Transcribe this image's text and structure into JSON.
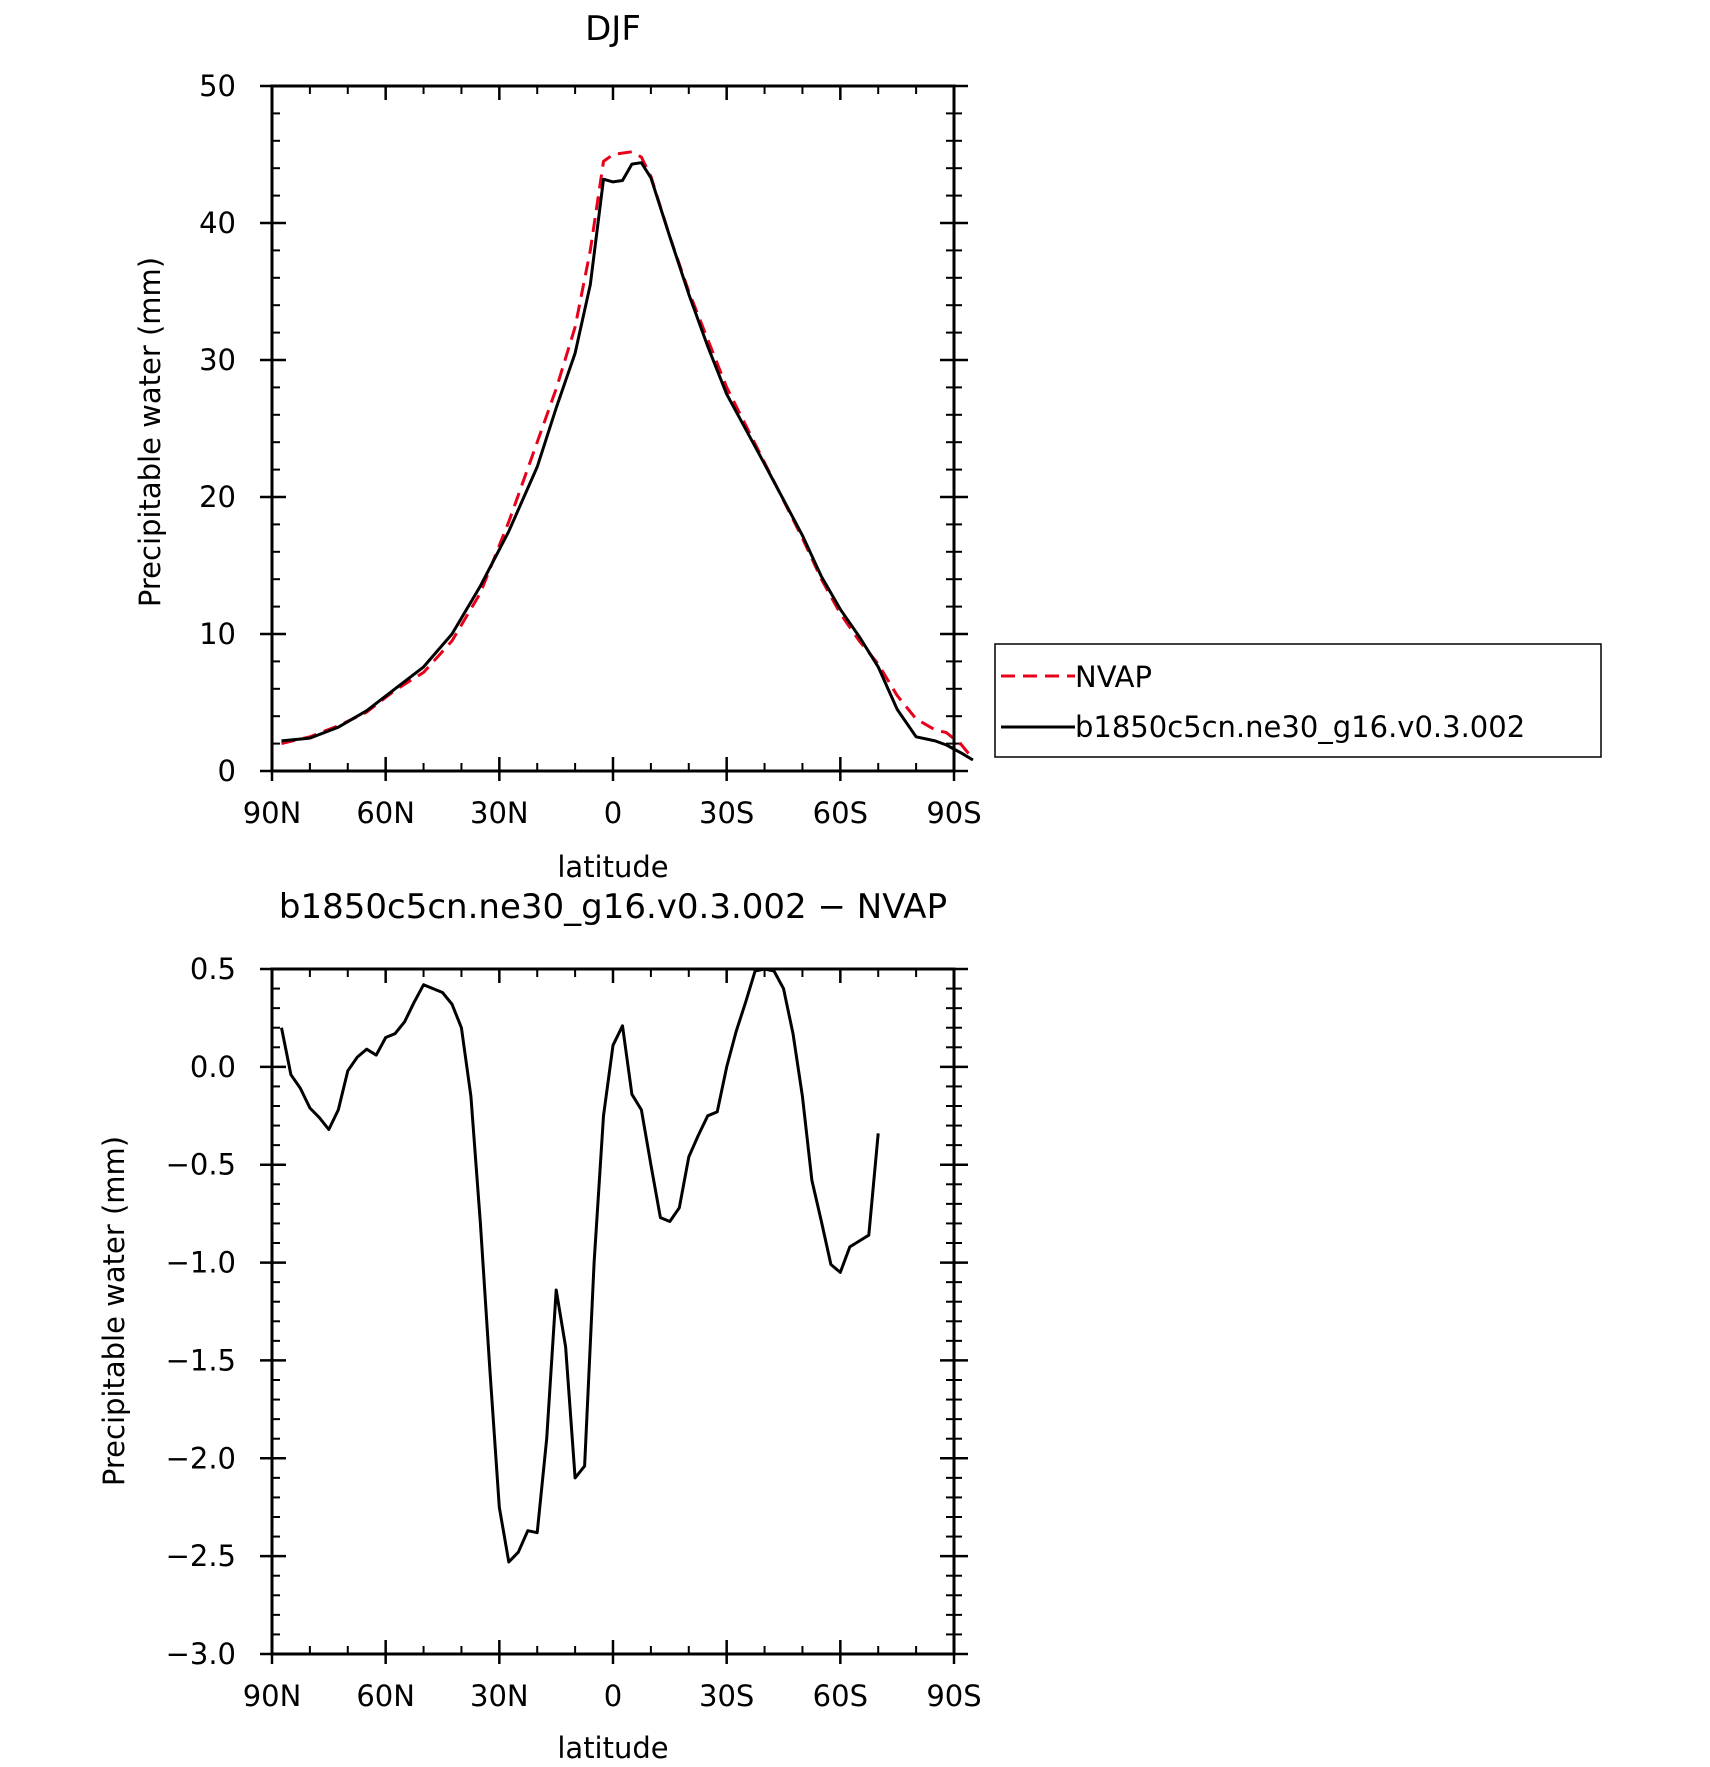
{
  "chart_data": [
    {
      "type": "line",
      "title": "DJF",
      "xlabel": "latitude",
      "ylabel": "Precipitable water (mm)",
      "xlim": [
        90,
        -90
      ],
      "ylim": [
        0,
        50
      ],
      "x_ticks": [
        {
          "value": 90,
          "label": "90N"
        },
        {
          "value": 60,
          "label": "60N"
        },
        {
          "value": 30,
          "label": "30N"
        },
        {
          "value": 0,
          "label": "0"
        },
        {
          "value": -30,
          "label": "30S"
        },
        {
          "value": -60,
          "label": "60S"
        },
        {
          "value": -90,
          "label": "90S"
        }
      ],
      "y_ticks": [
        {
          "value": 0,
          "label": "0"
        },
        {
          "value": 10,
          "label": "10"
        },
        {
          "value": 20,
          "label": "20"
        },
        {
          "value": 30,
          "label": "30"
        },
        {
          "value": 40,
          "label": "40"
        },
        {
          "value": 50,
          "label": "50"
        }
      ],
      "legend_position": "right",
      "series": [
        {
          "name": "NVAP",
          "color": "#e8001b",
          "dash": "dashed",
          "points": [
            [
              87.5,
              2.0
            ],
            [
              80,
              2.5
            ],
            [
              72.5,
              3.3
            ],
            [
              65,
              4.3
            ],
            [
              57.5,
              5.9
            ],
            [
              50,
              7.2
            ],
            [
              42.5,
              9.5
            ],
            [
              35,
              13.0
            ],
            [
              27.5,
              18.2
            ],
            [
              20,
              24.0
            ],
            [
              15,
              27.9
            ],
            [
              10,
              32.4
            ],
            [
              6,
              38.0
            ],
            [
              2.5,
              44.5
            ],
            [
              0,
              45.0
            ],
            [
              -5,
              45.2
            ],
            [
              -7.5,
              44.8
            ],
            [
              -10,
              43.4
            ],
            [
              -15,
              39.0
            ],
            [
              -20,
              35.0
            ],
            [
              -25,
              31.5
            ],
            [
              -30,
              28.0
            ],
            [
              -40,
              22.5
            ],
            [
              -50,
              17.0
            ],
            [
              -55,
              14.0
            ],
            [
              -60,
              11.5
            ],
            [
              -65,
              9.5
            ],
            [
              -70,
              7.8
            ],
            [
              -75,
              5.5
            ],
            [
              -80,
              3.8
            ],
            [
              -85,
              3.0
            ],
            [
              -88,
              2.8
            ],
            [
              -92,
              1.9
            ],
            [
              -95,
              0.9
            ]
          ]
        },
        {
          "name": "b1850c5cn.ne30_g16.v0.3.002",
          "color": "#000000",
          "dash": "solid",
          "points": [
            [
              87.5,
              2.2
            ],
            [
              80,
              2.4
            ],
            [
              72.5,
              3.2
            ],
            [
              65,
              4.4
            ],
            [
              57.5,
              6.0
            ],
            [
              50,
              7.6
            ],
            [
              42.5,
              10.0
            ],
            [
              35,
              13.5
            ],
            [
              27.5,
              17.5
            ],
            [
              20,
              22.2
            ],
            [
              15,
              26.5
            ],
            [
              10,
              30.5
            ],
            [
              6,
              35.5
            ],
            [
              2.5,
              43.2
            ],
            [
              0,
              43.0
            ],
            [
              -2.5,
              43.1
            ],
            [
              -5,
              44.3
            ],
            [
              -7.5,
              44.4
            ],
            [
              -10,
              43.3
            ],
            [
              -15,
              39.0
            ],
            [
              -20,
              34.8
            ],
            [
              -25,
              31.0
            ],
            [
              -30,
              27.5
            ],
            [
              -40,
              22.4
            ],
            [
              -50,
              17.2
            ],
            [
              -55,
              14.2
            ],
            [
              -60,
              11.8
            ],
            [
              -65,
              9.8
            ],
            [
              -70,
              7.6
            ],
            [
              -75,
              4.5
            ],
            [
              -80,
              2.5
            ],
            [
              -85,
              2.2
            ],
            [
              -88,
              1.9
            ],
            [
              -92,
              1.3
            ],
            [
              -95,
              0.8
            ]
          ]
        }
      ]
    },
    {
      "type": "line",
      "title": "b1850c5cn.ne30_g16.v0.3.002 − NVAP",
      "xlabel": "latitude",
      "ylabel": "Precipitable water (mm)",
      "xlim": [
        90,
        -90
      ],
      "ylim": [
        -3.0,
        0.5
      ],
      "x_ticks": [
        {
          "value": 90,
          "label": "90N"
        },
        {
          "value": 60,
          "label": "60N"
        },
        {
          "value": 30,
          "label": "30N"
        },
        {
          "value": 0,
          "label": "0"
        },
        {
          "value": -30,
          "label": "30S"
        },
        {
          "value": -60,
          "label": "60S"
        },
        {
          "value": -90,
          "label": "90S"
        }
      ],
      "y_ticks": [
        {
          "value": -3.0,
          "label": "−3.0"
        },
        {
          "value": -2.5,
          "label": "−2.5"
        },
        {
          "value": -2.0,
          "label": "−2.0"
        },
        {
          "value": -1.5,
          "label": "−1.5"
        },
        {
          "value": -1.0,
          "label": "−1.0"
        },
        {
          "value": -0.5,
          "label": "−0.5"
        },
        {
          "value": 0.0,
          "label": "0.0"
        },
        {
          "value": 0.5,
          "label": "0.5"
        }
      ],
      "series": [
        {
          "color": "#000000",
          "dash": "solid",
          "points": [
            [
              87.5,
              0.2
            ],
            [
              85,
              -0.04
            ],
            [
              82.5,
              -0.11
            ],
            [
              80,
              -0.21
            ],
            [
              77.5,
              -0.26
            ],
            [
              75,
              -0.32
            ],
            [
              72.5,
              -0.22
            ],
            [
              70,
              -0.02
            ],
            [
              67.5,
              0.05
            ],
            [
              65,
              0.09
            ],
            [
              62.5,
              0.06
            ],
            [
              60,
              0.15
            ],
            [
              57.5,
              0.17
            ],
            [
              55,
              0.23
            ],
            [
              52.5,
              0.33
            ],
            [
              50,
              0.42
            ],
            [
              47.5,
              0.4
            ],
            [
              45,
              0.38
            ],
            [
              42.5,
              0.32
            ],
            [
              40,
              0.2
            ],
            [
              37.5,
              -0.15
            ],
            [
              35,
              -0.8
            ],
            [
              32.5,
              -1.55
            ],
            [
              30,
              -2.25
            ],
            [
              27.5,
              -2.53
            ],
            [
              25,
              -2.48
            ],
            [
              22.5,
              -2.37
            ],
            [
              20,
              -2.38
            ],
            [
              17.5,
              -1.9
            ],
            [
              15,
              -1.14
            ],
            [
              12.5,
              -1.43
            ],
            [
              10,
              -2.1
            ],
            [
              7.5,
              -2.04
            ],
            [
              5,
              -1.0
            ],
            [
              2.5,
              -0.25
            ],
            [
              0,
              0.11
            ],
            [
              -2.5,
              0.21
            ],
            [
              -5,
              -0.14
            ],
            [
              -7.5,
              -0.22
            ],
            [
              -10,
              -0.5
            ],
            [
              -12.5,
              -0.77
            ],
            [
              -15,
              -0.79
            ],
            [
              -17.5,
              -0.72
            ],
            [
              -20,
              -0.46
            ],
            [
              -22.5,
              -0.35
            ],
            [
              -25,
              -0.25
            ],
            [
              -27.5,
              -0.23
            ],
            [
              -30,
              0.0
            ],
            [
              -32.5,
              0.18
            ],
            [
              -35,
              0.33
            ],
            [
              -37.5,
              0.49
            ],
            [
              -40,
              0.5
            ],
            [
              -42.5,
              0.49
            ],
            [
              -45,
              0.4
            ],
            [
              -47.5,
              0.17
            ],
            [
              -50,
              -0.15
            ],
            [
              -52.5,
              -0.58
            ],
            [
              -55,
              -0.79
            ],
            [
              -57.5,
              -1.01
            ],
            [
              -60,
              -1.05
            ],
            [
              -62.5,
              -0.92
            ],
            [
              -65,
              -0.89
            ],
            [
              -67.5,
              -0.86
            ],
            [
              -70,
              -0.34
            ]
          ]
        }
      ]
    }
  ]
}
